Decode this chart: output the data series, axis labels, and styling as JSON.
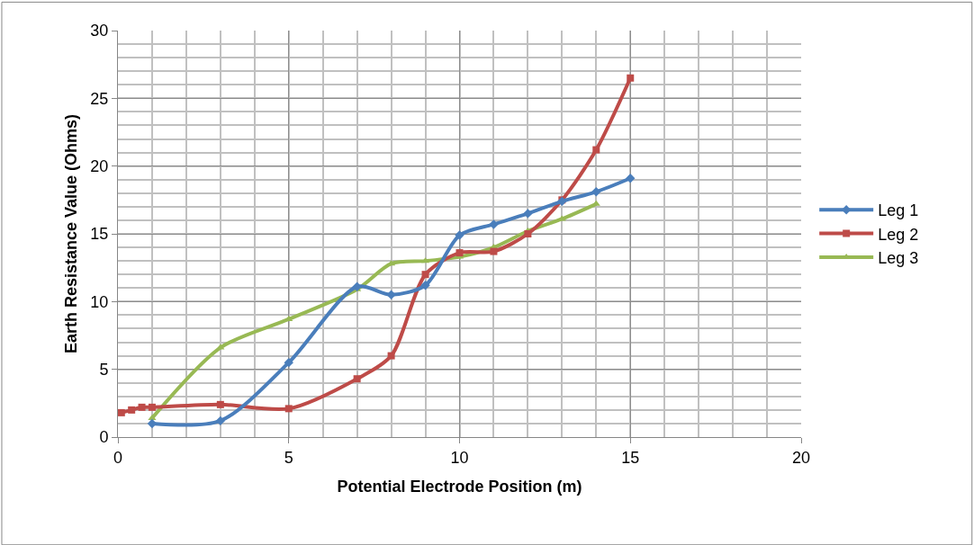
{
  "chart_data": {
    "type": "line",
    "xlabel": "Potential Electrode Position (m)",
    "ylabel": "Earth Resistance Value (Ohms)",
    "xlim": [
      0,
      20
    ],
    "xticks": [
      0,
      5,
      10,
      15,
      20
    ],
    "ylim": [
      0,
      30
    ],
    "yticks": [
      0,
      5,
      10,
      15,
      20,
      25,
      30
    ],
    "grid": true,
    "legend": "right",
    "series": [
      {
        "name": "Leg 1",
        "color": "#4a7ebb",
        "marker": "diamond",
        "x": [
          1,
          3,
          5,
          7,
          8,
          9,
          10,
          11,
          12,
          13,
          14,
          15
        ],
        "values": [
          1.0,
          1.2,
          5.5,
          11.1,
          10.5,
          11.2,
          14.9,
          15.7,
          16.5,
          17.4,
          18.1,
          19.1
        ]
      },
      {
        "name": "Leg 2",
        "color": "#be4b48",
        "marker": "square",
        "x": [
          0.1,
          0.4,
          0.7,
          1,
          3,
          5,
          7,
          8,
          9,
          10,
          11,
          12,
          13,
          14,
          15
        ],
        "values": [
          1.8,
          2.0,
          2.2,
          2.2,
          2.4,
          2.1,
          4.3,
          6.0,
          12.0,
          13.6,
          13.7,
          15.0,
          17.5,
          21.2,
          26.5
        ]
      },
      {
        "name": "Leg 3",
        "color": "#98b954",
        "marker": "triangle",
        "x": [
          1,
          3,
          5,
          7,
          8,
          9,
          10,
          11,
          12,
          13,
          14
        ],
        "values": [
          1.4,
          6.6,
          8.7,
          10.9,
          12.8,
          13.0,
          13.3,
          14.0,
          15.2,
          16.1,
          17.2
        ]
      }
    ]
  }
}
